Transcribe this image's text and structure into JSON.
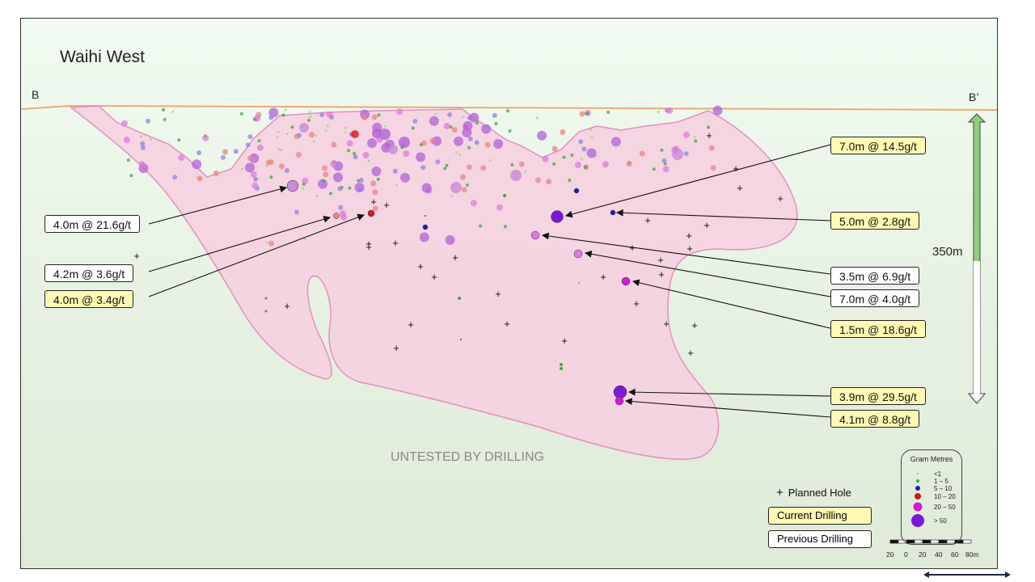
{
  "title": "Waihi West",
  "section_start": "B",
  "section_end": "B’",
  "vertical_scale": "350m",
  "untested_label": "UNTESTED BY DRILLING",
  "colors": {
    "current_drilling_fill": "#fff9b3",
    "previous_drilling_fill": "#ffffff",
    "orebody_fill": "#f7cfe0",
    "orebody_outline": "#e58fbf",
    "surface_line": "#f0a878",
    "scale_arrow": "#8fcf7a"
  },
  "callouts": [
    {
      "text": "4.0m @ 21.6g/t",
      "type": "previous"
    },
    {
      "text": "4.2m @ 3.6g/t",
      "type": "previous"
    },
    {
      "text": "4.0m @ 3.4g/t",
      "type": "current"
    },
    {
      "text": "7.0m @ 14.5g/t",
      "type": "current"
    },
    {
      "text": "5.0m @ 2.8g/t",
      "type": "current"
    },
    {
      "text": "3.5m @ 6.9g/t",
      "type": "previous"
    },
    {
      "text": "7.0m @ 4.0g/t",
      "type": "previous"
    },
    {
      "text": "1.5m @ 18.6g/t",
      "type": "current"
    },
    {
      "text": "3.9m @ 29.5g/t",
      "type": "current"
    },
    {
      "text": "4.1m @ 8.8g/t",
      "type": "current"
    }
  ],
  "legend": {
    "planned_hole": "Planned Hole",
    "current_drilling": "Current Drilling",
    "previous_drilling": "Previous Drilling",
    "gram_metres_title": "Gram Metres",
    "gram_metres_classes": [
      {
        "label": "<1",
        "color": "#9ad47f"
      },
      {
        "label": "1 – 5",
        "color": "#3aa83a"
      },
      {
        "label": "5 – 10",
        "color": "#1d1db8"
      },
      {
        "label": "10 – 20",
        "color": "#d11a1a"
      },
      {
        "label": "20 – 50",
        "color": "#d21ad2"
      },
      {
        "label": "> 50",
        "color": "#7a1ad6"
      }
    ],
    "scale_bar_labels": [
      "20",
      "0",
      "20",
      "40",
      "60",
      "80m"
    ]
  }
}
